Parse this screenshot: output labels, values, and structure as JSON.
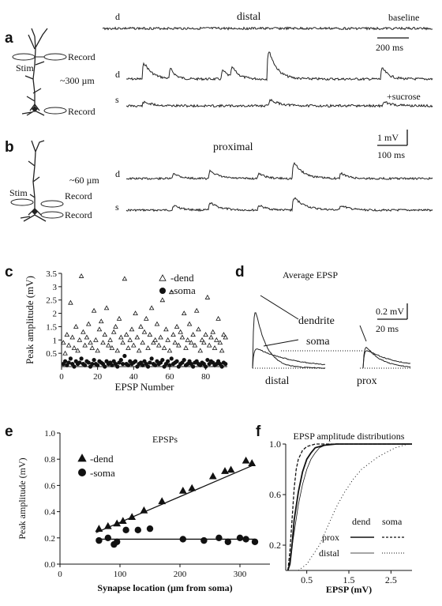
{
  "panels": {
    "a": {
      "letter": "a",
      "title": "distal",
      "record_label": "Record",
      "stim_label": "Stim",
      "distance": "~300 µm",
      "rec_label_soma": "Record",
      "trace_d_label": "d",
      "trace_s_label": "s",
      "baseline_label": "baseline",
      "sucrose_label": "+sucrose",
      "scale_time": "200 ms"
    },
    "b": {
      "letter": "b",
      "title": "proximal",
      "distance": "~60 µm",
      "stim_label": "Stim",
      "record_dend": "Record",
      "record_soma": "Record",
      "trace_d_label": "d",
      "trace_s_label": "s",
      "scale_v": "1 mV",
      "scale_time": "100 ms"
    },
    "c": {
      "letter": "c"
    },
    "d": {
      "letter": "d",
      "title": "Average EPSP",
      "dendrite_label": "dendrite",
      "soma_label": "soma",
      "scale_v": "0.2 mV",
      "scale_time": "20 ms",
      "distal_label": "distal",
      "prox_label": "prox"
    },
    "e": {
      "letter": "e"
    },
    "f": {
      "letter": "f",
      "legend_header_dend": "dend",
      "legend_header_soma": "soma",
      "legend_prox": "prox",
      "legend_distal": "distal"
    }
  },
  "chart_data": [
    {
      "id": "c",
      "type": "scatter",
      "title": "",
      "xlabel": "EPSP Number",
      "ylabel": "Peak amplitude (mV)",
      "xlim": [
        0,
        92
      ],
      "ylim": [
        0,
        3.5
      ],
      "xticks": [
        "0",
        "20",
        "40",
        "60",
        "80"
      ],
      "yticks": [
        "0.5",
        "1",
        "1.5",
        "2",
        "2.5",
        "3",
        "3.5"
      ],
      "legend": [
        "-dend",
        "-soma"
      ],
      "legend_position": "top-right",
      "series": [
        {
          "name": "-dend",
          "marker": "triangle-open",
          "x": [
            1,
            2,
            3,
            4,
            5,
            6,
            7,
            8,
            9,
            10,
            11,
            12,
            13,
            14,
            15,
            16,
            17,
            18,
            19,
            20,
            21,
            22,
            23,
            24,
            25,
            26,
            27,
            28,
            29,
            30,
            31,
            32,
            33,
            34,
            35,
            36,
            37,
            38,
            39,
            40,
            41,
            42,
            43,
            44,
            45,
            46,
            47,
            48,
            49,
            50,
            51,
            52,
            53,
            54,
            55,
            56,
            57,
            58,
            59,
            60,
            61,
            62,
            63,
            64,
            65,
            66,
            67,
            68,
            69,
            70,
            71,
            72,
            73,
            74,
            75,
            76,
            77,
            78,
            79,
            80,
            81,
            82,
            83,
            84,
            85,
            86,
            87,
            88,
            89,
            90,
            91
          ],
          "y": [
            0.9,
            0.5,
            1.2,
            0.8,
            2.4,
            1.1,
            0.7,
            1.5,
            0.6,
            1.0,
            3.4,
            1.3,
            0.8,
            1.1,
            1.6,
            0.9,
            0.7,
            2.1,
            1.0,
            0.6,
            1.4,
            1.7,
            0.9,
            1.2,
            2.2,
            0.8,
            1.0,
            0.7,
            1.3,
            1.5,
            0.6,
            1.8,
            1.1,
            0.9,
            3.3,
            1.2,
            0.7,
            1.0,
            1.4,
            0.8,
            2.0,
            1.1,
            0.6,
            1.5,
            0.9,
            1.3,
            1.8,
            0.7,
            1.2,
            2.2,
            0.9,
            1.0,
            1.6,
            0.8,
            1.1,
            2.5,
            0.7,
            1.4,
            1.0,
            0.6,
            2.8,
            1.2,
            0.9,
            1.5,
            0.8,
            1.3,
            1.1,
            2.0,
            0.7,
            1.0,
            1.6,
            0.9,
            1.2,
            0.8,
            2.1,
            1.4,
            0.6,
            1.0,
            0.9,
            1.2,
            2.6,
            0.8,
            1.1,
            1.3,
            0.7,
            1.0,
            1.8,
            0.9,
            0.6,
            1.2,
            1.1
          ]
        },
        {
          "name": "-soma",
          "marker": "circle-filled",
          "x": [
            1,
            2,
            3,
            4,
            5,
            6,
            7,
            8,
            9,
            10,
            11,
            12,
            13,
            14,
            15,
            16,
            17,
            18,
            19,
            20,
            21,
            22,
            23,
            24,
            25,
            26,
            27,
            28,
            29,
            30,
            31,
            32,
            33,
            34,
            35,
            36,
            37,
            38,
            39,
            40,
            41,
            42,
            43,
            44,
            45,
            46,
            47,
            48,
            49,
            50,
            51,
            52,
            53,
            54,
            55,
            56,
            57,
            58,
            59,
            60,
            61,
            62,
            63,
            64,
            65,
            66,
            67,
            68,
            69,
            70,
            71,
            72,
            73,
            74,
            75,
            76,
            77,
            78,
            79,
            80,
            81,
            82,
            83,
            84,
            85,
            86,
            87,
            88,
            89,
            90,
            91
          ],
          "y": [
            0.1,
            0.2,
            0.05,
            0.15,
            0.3,
            0.1,
            0.0,
            0.2,
            0.1,
            0.15,
            0.3,
            0.1,
            0.05,
            0.2,
            0.15,
            0.0,
            0.1,
            0.25,
            0.1,
            0.05,
            0.2,
            0.15,
            0.1,
            0.0,
            0.2,
            0.1,
            0.15,
            0.05,
            0.2,
            0.1,
            0.0,
            0.15,
            0.25,
            0.1,
            0.4,
            0.1,
            0.05,
            0.2,
            0.1,
            0.15,
            0.2,
            0.0,
            0.1,
            0.15,
            0.05,
            0.2,
            0.1,
            0.0,
            0.15,
            0.3,
            0.1,
            0.05,
            0.2,
            0.1,
            0.15,
            0.25,
            0.0,
            0.1,
            0.2,
            0.05,
            0.3,
            0.1,
            0.15,
            0.2,
            0.0,
            0.1,
            0.15,
            0.25,
            0.05,
            0.1,
            0.2,
            0.1,
            0.0,
            0.15,
            0.2,
            0.1,
            0.05,
            0.15,
            0.1,
            0.0,
            0.25,
            0.1,
            0.2,
            0.15,
            0.05,
            0.1,
            0.2,
            0.1,
            0.0,
            0.15,
            0.1
          ]
        }
      ]
    },
    {
      "id": "e",
      "type": "scatter",
      "title": "EPSPs",
      "xlabel": "Synapse location (µm from soma)",
      "ylabel": "Peak amplitude (mV)",
      "xlim": [
        0,
        350
      ],
      "ylim": [
        0,
        1.0
      ],
      "xticks": [
        "0",
        "100",
        "200",
        "300"
      ],
      "yticks": [
        "0.0",
        "0.2",
        "0.4",
        "0.6",
        "0.8",
        "1.0"
      ],
      "legend": [
        "-dend",
        "-soma"
      ],
      "legend_position": "top-left",
      "series": [
        {
          "name": "-dend",
          "marker": "triangle-filled",
          "x": [
            65,
            80,
            95,
            105,
            120,
            140,
            170,
            205,
            220,
            255,
            275,
            285,
            310,
            320
          ],
          "y": [
            0.27,
            0.29,
            0.31,
            0.33,
            0.36,
            0.41,
            0.48,
            0.56,
            0.58,
            0.67,
            0.71,
            0.72,
            0.79,
            0.77
          ]
        },
        {
          "name": "-soma",
          "marker": "circle-filled",
          "x": [
            65,
            80,
            90,
            95,
            110,
            130,
            150,
            205,
            240,
            265,
            280,
            300,
            310,
            325
          ],
          "y": [
            0.18,
            0.2,
            0.15,
            0.17,
            0.26,
            0.26,
            0.27,
            0.19,
            0.18,
            0.2,
            0.17,
            0.2,
            0.19,
            0.17
          ]
        }
      ],
      "fits": [
        {
          "name": "-dend",
          "x": [
            60,
            325
          ],
          "y": [
            0.24,
            0.76
          ]
        },
        {
          "name": "-soma",
          "x": [
            60,
            325
          ],
          "y": [
            0.19,
            0.19
          ]
        }
      ]
    },
    {
      "id": "f",
      "type": "line",
      "title": "EPSP amplitude distributions",
      "xlabel": "EPSP (mV)",
      "ylabel": "",
      "xlim": [
        0,
        3.0
      ],
      "ylim": [
        0,
        1.0
      ],
      "xticks": [
        "0.5",
        "1.5",
        "2.5"
      ],
      "yticks": [
        "0.2",
        "0.6",
        "1.0"
      ],
      "series": [
        {
          "name": "prox dend",
          "style": "solid",
          "x": [
            0.05,
            0.1,
            0.15,
            0.2,
            0.3,
            0.4,
            0.5,
            0.6,
            0.7,
            0.9,
            1.2
          ],
          "y": [
            0,
            0.05,
            0.2,
            0.4,
            0.62,
            0.78,
            0.88,
            0.93,
            0.97,
            0.99,
            1.0
          ]
        },
        {
          "name": "prox soma",
          "style": "dashed",
          "x": [
            0.05,
            0.1,
            0.15,
            0.2,
            0.25,
            0.3,
            0.4,
            0.5,
            0.7
          ],
          "y": [
            0,
            0.15,
            0.4,
            0.65,
            0.8,
            0.88,
            0.95,
            0.98,
            1.0
          ]
        },
        {
          "name": "distal dend",
          "style": "thin-solid",
          "x": [
            0.05,
            0.1,
            0.2,
            0.3,
            0.4,
            0.5,
            0.6,
            0.7,
            0.8,
            1.0
          ],
          "y": [
            0,
            0.08,
            0.3,
            0.52,
            0.68,
            0.8,
            0.88,
            0.93,
            0.97,
            1.0
          ]
        },
        {
          "name": "distal soma",
          "style": "dotted",
          "x": [
            0.3,
            0.5,
            0.8,
            1.0,
            1.2,
            1.4,
            1.6,
            1.8,
            2.2,
            2.6,
            2.9
          ],
          "y": [
            0,
            0.05,
            0.2,
            0.35,
            0.5,
            0.62,
            0.72,
            0.8,
            0.9,
            0.97,
            1.0
          ]
        }
      ]
    }
  ]
}
